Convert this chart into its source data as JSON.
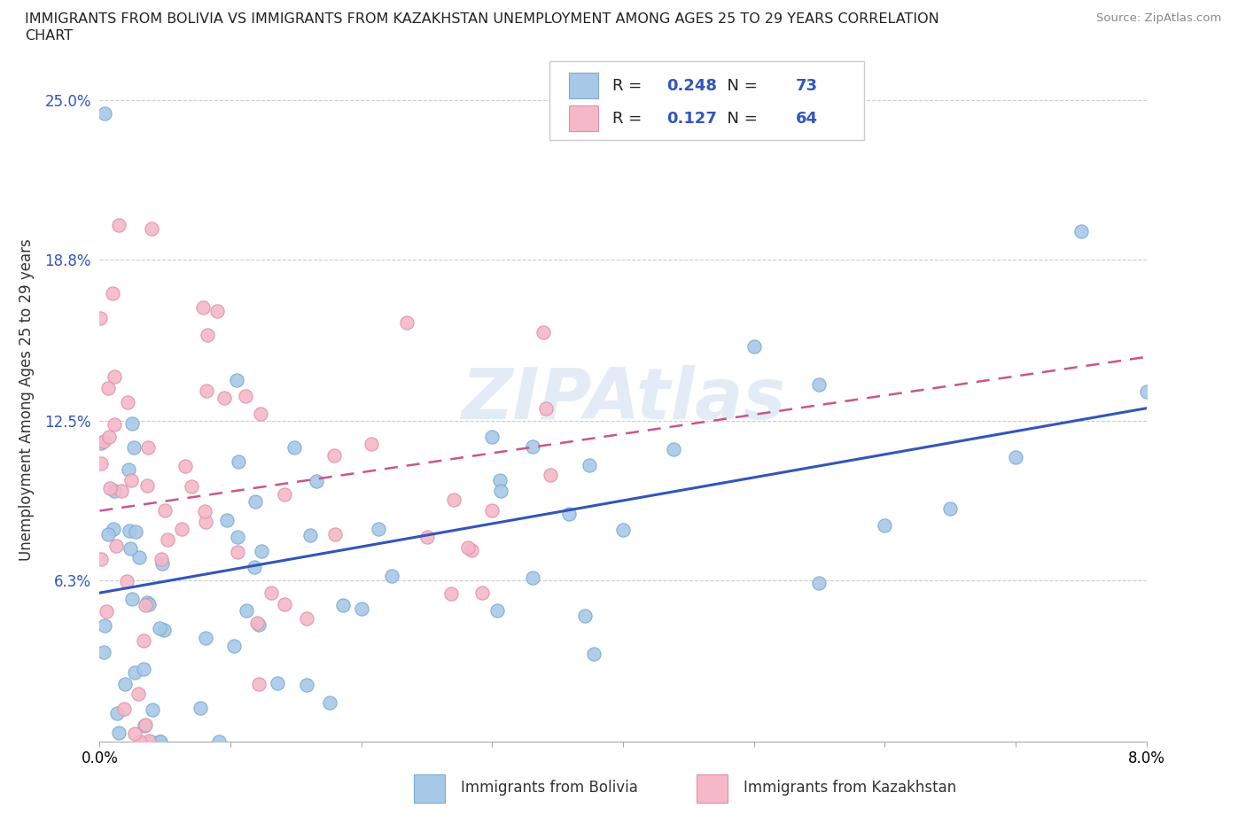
{
  "title_line1": "IMMIGRANTS FROM BOLIVIA VS IMMIGRANTS FROM KAZAKHSTAN UNEMPLOYMENT AMONG AGES 25 TO 29 YEARS CORRELATION",
  "title_line2": "CHART",
  "source_text": "Source: ZipAtlas.com",
  "ylabel": "Unemployment Among Ages 25 to 29 years",
  "xlim": [
    0.0,
    0.08
  ],
  "ylim": [
    0.0,
    0.2667
  ],
  "ytick_values": [
    0.063,
    0.125,
    0.188,
    0.25
  ],
  "ytick_labels": [
    "6.3%",
    "12.5%",
    "18.8%",
    "25.0%"
  ],
  "bolivia_color": "#a8c8e8",
  "bolivia_edge": "#7aaad0",
  "kazakhstan_color": "#f4b8c8",
  "kazakhstan_edge": "#e090a8",
  "bolivia_R": 0.248,
  "bolivia_N": 73,
  "kazakhstan_R": 0.127,
  "kazakhstan_N": 64,
  "bolivia_line_color": "#3355bb",
  "kazakhstan_line_color": "#cc5588",
  "watermark": "ZIPAtlas",
  "background_color": "#ffffff",
  "grid_color": "#cccccc",
  "legend_label_bolivia": "Immigrants from Bolivia",
  "legend_label_kazakhstan": "Immigrants from Kazakhstan",
  "r_n_color": "#3355bb",
  "title_fontsize": 11.5,
  "axis_tick_fontsize": 12,
  "legend_fontsize": 12,
  "ylabel_fontsize": 12
}
